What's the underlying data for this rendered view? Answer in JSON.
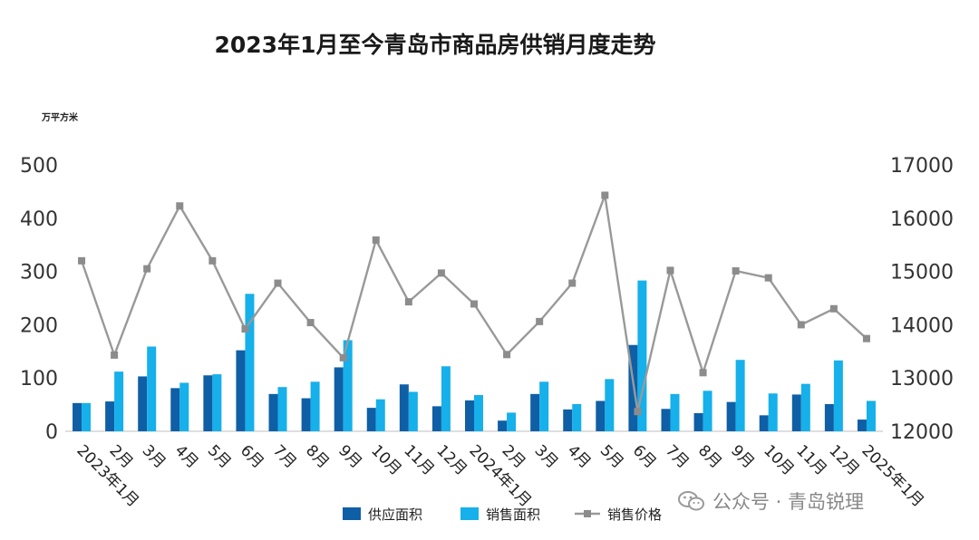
{
  "chart_data": {
    "type": "bar",
    "title": "2023年1月至今青岛市商品房供销月度走势",
    "y_unit": "万平方米",
    "categories": [
      "2023年1月",
      "2月",
      "3月",
      "4月",
      "5月",
      "6月",
      "7月",
      "8月",
      "9月",
      "10月",
      "11月",
      "12月",
      "2024年1月",
      "2月",
      "3月",
      "4月",
      "5月",
      "6月",
      "7月",
      "8月",
      "9月",
      "10月",
      "11月",
      "12月",
      "2025年1月"
    ],
    "ylim_left": [
      0,
      500
    ],
    "left_ticks": [
      0,
      100,
      200,
      300,
      400,
      500
    ],
    "ylim_right": [
      12000,
      17000
    ],
    "right_ticks": [
      12000,
      13000,
      14000,
      15000,
      16000,
      17000
    ],
    "series": [
      {
        "name": "供应面积",
        "kind": "bar",
        "axis": "left",
        "color": "#0f5fa6",
        "values": [
          53,
          56,
          103,
          81,
          105,
          152,
          70,
          62,
          120,
          44,
          88,
          47,
          58,
          20,
          70,
          41,
          57,
          162,
          42,
          34,
          55,
          30,
          69,
          51,
          22
        ]
      },
      {
        "name": "销售面积",
        "kind": "bar",
        "axis": "left",
        "color": "#16b0ea",
        "values": [
          53,
          112,
          159,
          91,
          107,
          258,
          83,
          93,
          171,
          60,
          74,
          122,
          68,
          35,
          93,
          51,
          98,
          283,
          70,
          76,
          134,
          71,
          89,
          133,
          57
        ]
      },
      {
        "name": "销售价格",
        "kind": "line",
        "axis": "right",
        "color": "#999999",
        "values": [
          15200,
          13430,
          15050,
          16230,
          15200,
          13920,
          14780,
          14040,
          13380,
          15590,
          14430,
          14970,
          14390,
          13440,
          14060,
          14780,
          16430,
          12370,
          15020,
          13100,
          15010,
          14880,
          14000,
          14300,
          13740
        ]
      }
    ],
    "legend_position": "bottom",
    "grid": false
  },
  "watermark": {
    "text": "公众号 · 青岛锐理",
    "icon": "wechat-icon"
  }
}
